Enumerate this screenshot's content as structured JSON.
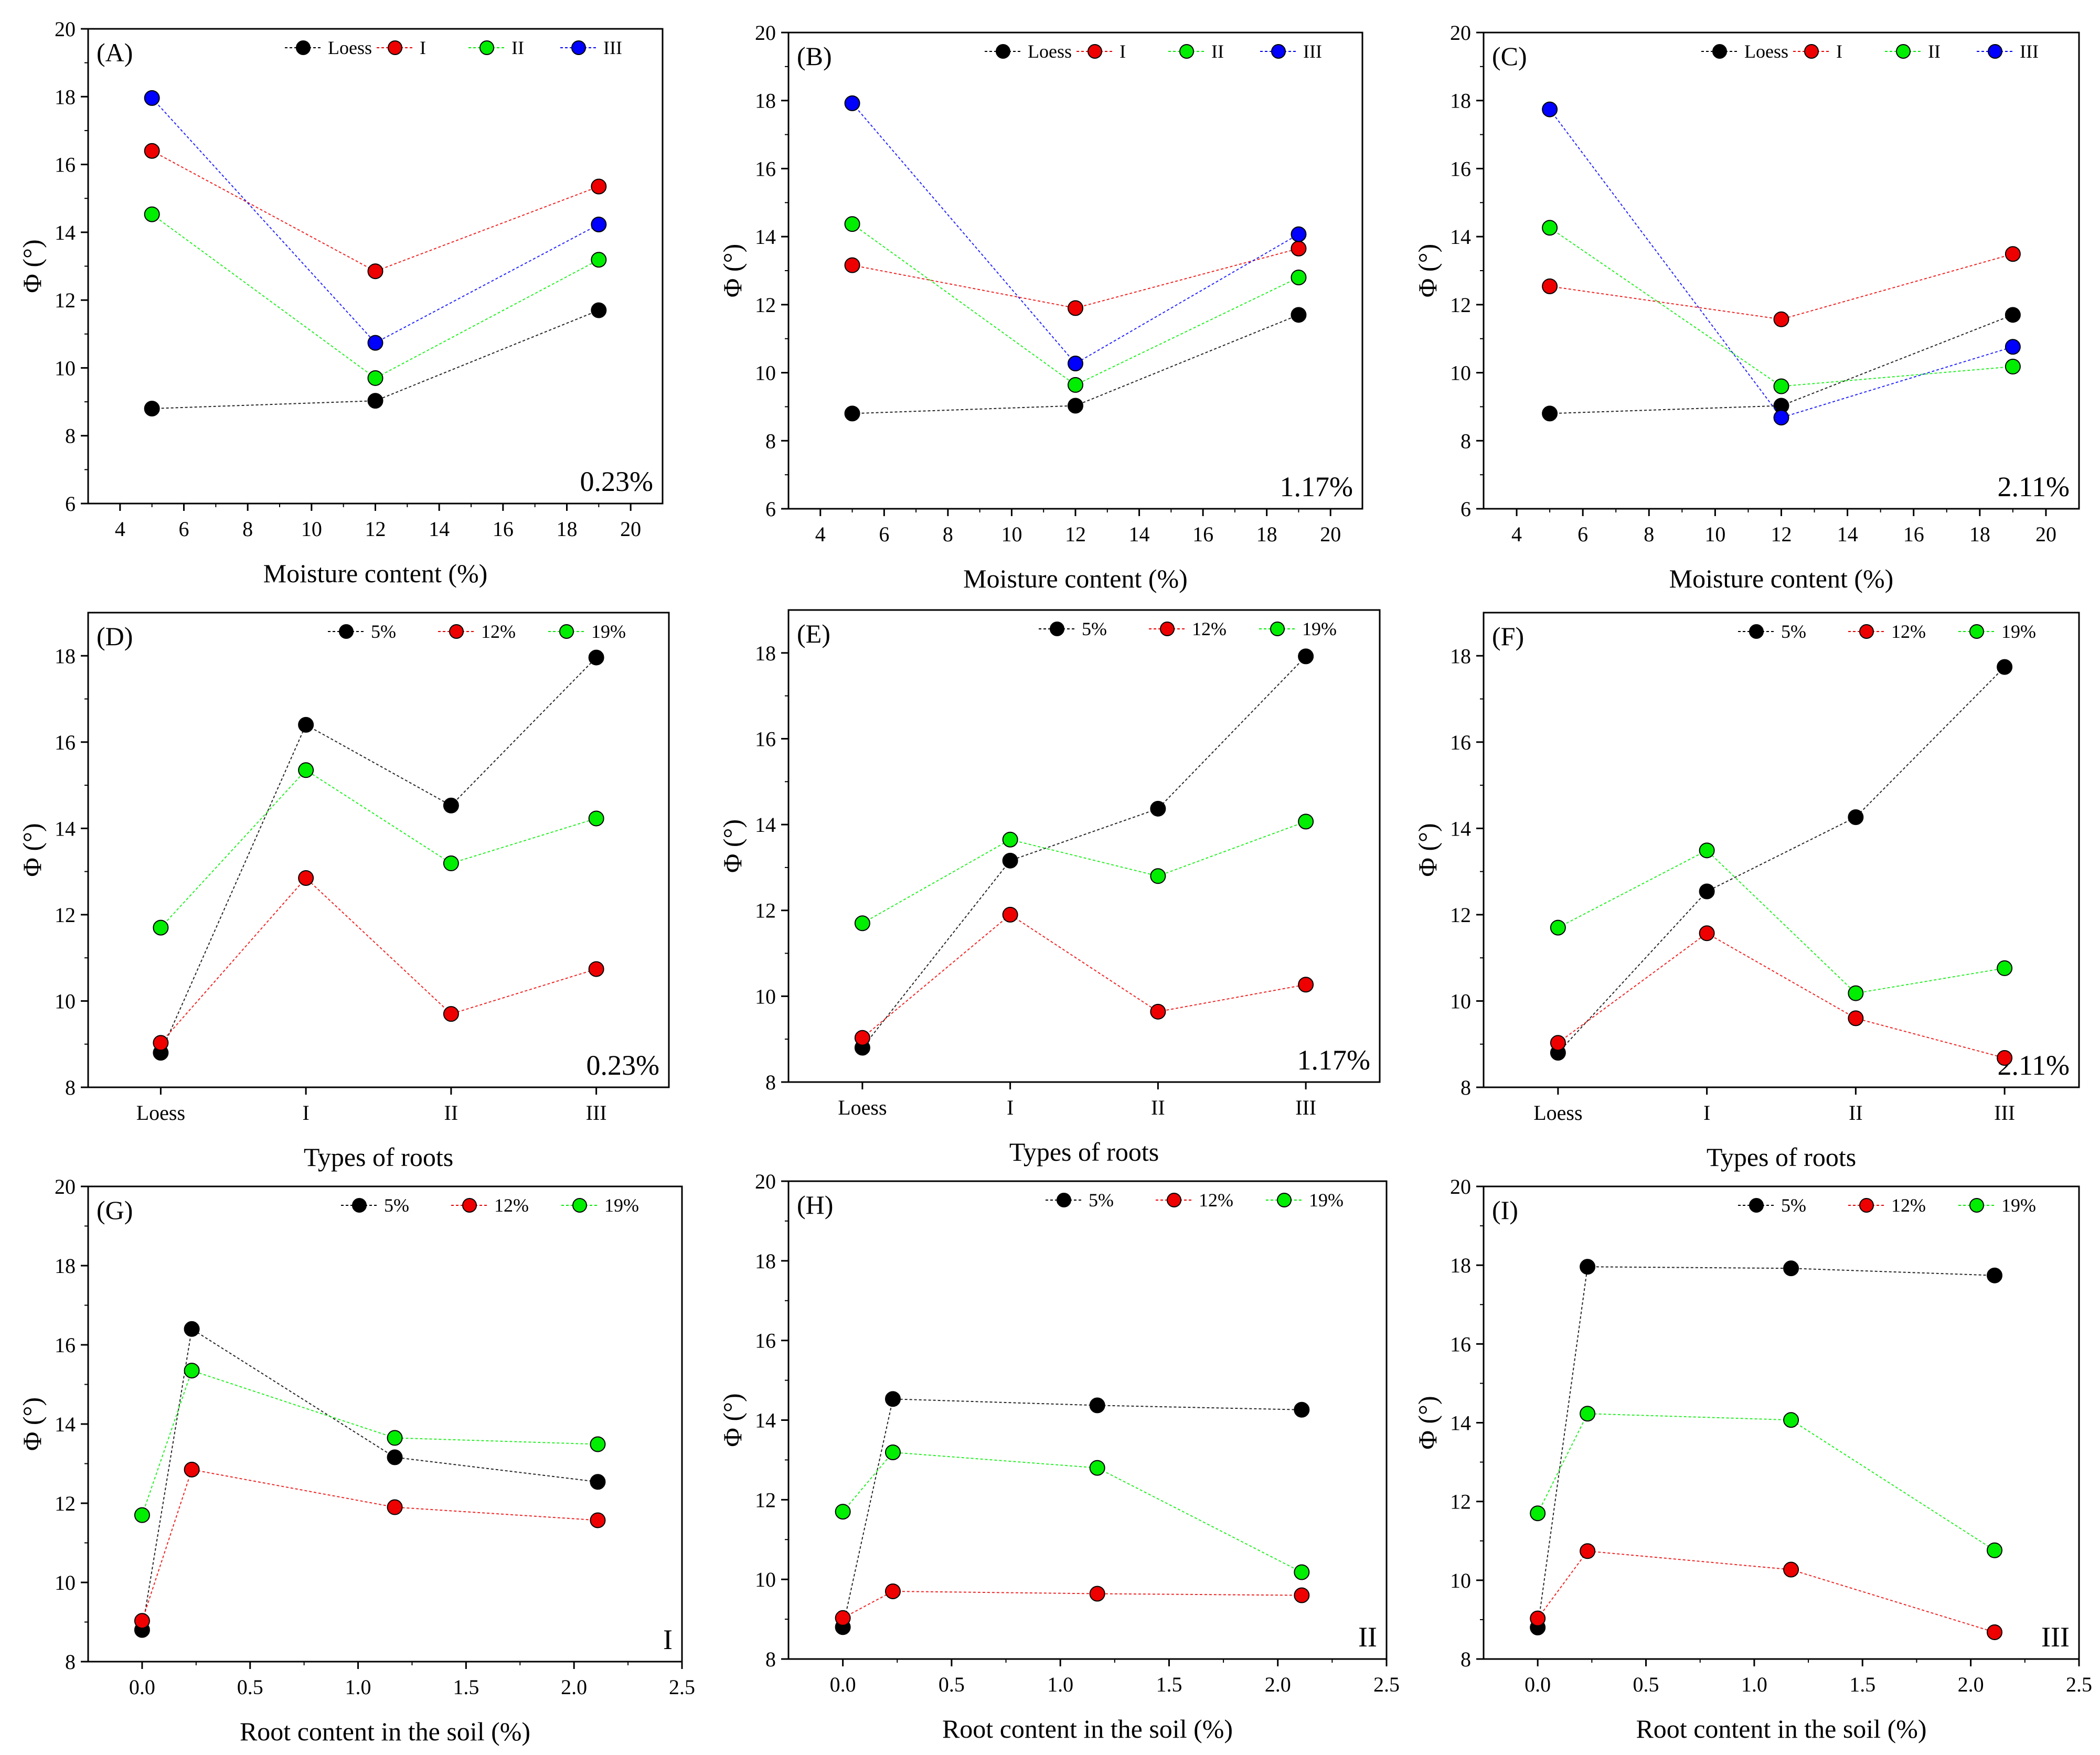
{
  "colors": {
    "black": "#000000",
    "red": "#ee0000",
    "green": "#00ee00",
    "blue": "#0000ff"
  },
  "chart_data": [
    {
      "id": "A",
      "type": "line",
      "panel_label": "(A)",
      "annotation": "0.23%",
      "xlabel": "Moisture content (%)",
      "ylabel": "Φ (°)",
      "xlim": [
        3,
        21
      ],
      "ylim": [
        6,
        20
      ],
      "xtype": "numeric",
      "xticks": [
        4,
        6,
        8,
        10,
        12,
        14,
        16,
        18,
        20
      ],
      "yticks": [
        6,
        8,
        10,
        12,
        14,
        16,
        18,
        20
      ],
      "x": [
        5,
        12,
        19
      ],
      "series": [
        {
          "name": "Loess",
          "color": "black",
          "values": [
            8.8,
            9.03,
            11.7
          ]
        },
        {
          "name": "I",
          "color": "red",
          "values": [
            16.4,
            12.85,
            15.35
          ]
        },
        {
          "name": "II",
          "color": "green",
          "values": [
            14.53,
            9.7,
            13.19
          ]
        },
        {
          "name": "III",
          "color": "blue",
          "values": [
            17.96,
            10.74,
            14.23
          ]
        }
      ]
    },
    {
      "id": "B",
      "type": "line",
      "panel_label": "(B)",
      "annotation": "1.17%",
      "xlabel": "Moisture content (%)",
      "ylabel": "Φ (°)",
      "xlim": [
        3,
        21
      ],
      "ylim": [
        6,
        20
      ],
      "xtype": "numeric",
      "xticks": [
        4,
        6,
        8,
        10,
        12,
        14,
        16,
        18,
        20
      ],
      "yticks": [
        6,
        8,
        10,
        12,
        14,
        16,
        18,
        20
      ],
      "x": [
        5,
        12,
        19
      ],
      "series": [
        {
          "name": "Loess",
          "color": "black",
          "values": [
            8.8,
            9.03,
            11.7
          ]
        },
        {
          "name": "I",
          "color": "red",
          "values": [
            13.16,
            11.9,
            13.65
          ]
        },
        {
          "name": "II",
          "color": "green",
          "values": [
            14.37,
            9.64,
            12.8
          ]
        },
        {
          "name": "III",
          "color": "blue",
          "values": [
            17.92,
            10.27,
            14.07
          ]
        }
      ]
    },
    {
      "id": "C",
      "type": "line",
      "panel_label": "(C)",
      "annotation": "2.11%",
      "xlabel": "Moisture content (%)",
      "ylabel": "Φ (°)",
      "xlim": [
        3,
        21
      ],
      "ylim": [
        6,
        20
      ],
      "xtype": "numeric",
      "xticks": [
        4,
        6,
        8,
        10,
        12,
        14,
        16,
        18,
        20
      ],
      "yticks": [
        6,
        8,
        10,
        12,
        14,
        16,
        18,
        20
      ],
      "x": [
        5,
        12,
        19
      ],
      "series": [
        {
          "name": "Loess",
          "color": "black",
          "values": [
            8.8,
            9.03,
            11.7
          ]
        },
        {
          "name": "I",
          "color": "red",
          "values": [
            12.54,
            11.57,
            13.49
          ]
        },
        {
          "name": "II",
          "color": "green",
          "values": [
            14.26,
            9.6,
            10.18
          ]
        },
        {
          "name": "III",
          "color": "blue",
          "values": [
            17.74,
            8.68,
            10.76
          ]
        }
      ]
    },
    {
      "id": "D",
      "type": "line",
      "panel_label": "(D)",
      "annotation": "0.23%",
      "xlabel": "Types of roots",
      "ylabel": "Φ (°)",
      "xlim": [
        -0.5,
        3.5
      ],
      "ylim": [
        8,
        19
      ],
      "xtype": "category",
      "categories": [
        "Loess",
        "I",
        "II",
        "III"
      ],
      "yticks": [
        8,
        10,
        12,
        14,
        16,
        18
      ],
      "series": [
        {
          "name": "5%",
          "color": "black",
          "values": [
            8.8,
            16.4,
            14.53,
            17.96
          ]
        },
        {
          "name": "12%",
          "color": "red",
          "values": [
            9.03,
            12.85,
            9.7,
            10.74
          ]
        },
        {
          "name": "19%",
          "color": "green",
          "values": [
            11.7,
            15.35,
            13.19,
            14.23
          ]
        }
      ]
    },
    {
      "id": "E",
      "type": "line",
      "panel_label": "(E)",
      "annotation": "1.17%",
      "xlabel": "Types of roots",
      "ylabel": "Φ (°)",
      "xlim": [
        -0.5,
        3.5
      ],
      "ylim": [
        8,
        19
      ],
      "xtype": "category",
      "categories": [
        "Loess",
        "I",
        "II",
        "III"
      ],
      "yticks": [
        8,
        10,
        12,
        14,
        16,
        18
      ],
      "series": [
        {
          "name": "5%",
          "color": "black",
          "values": [
            8.8,
            13.16,
            14.37,
            17.92
          ]
        },
        {
          "name": "12%",
          "color": "red",
          "values": [
            9.03,
            11.9,
            9.64,
            10.27
          ]
        },
        {
          "name": "19%",
          "color": "green",
          "values": [
            11.7,
            13.65,
            12.8,
            14.07
          ]
        }
      ]
    },
    {
      "id": "F",
      "type": "line",
      "panel_label": "(F)",
      "annotation": "2.11%",
      "xlabel": "Types of roots",
      "ylabel": "Φ (°)",
      "xlim": [
        -0.5,
        3.5
      ],
      "ylim": [
        8,
        19
      ],
      "xtype": "category",
      "categories": [
        "Loess",
        "I",
        "II",
        "III"
      ],
      "yticks": [
        8,
        10,
        12,
        14,
        16,
        18
      ],
      "series": [
        {
          "name": "5%",
          "color": "black",
          "values": [
            8.8,
            12.54,
            14.26,
            17.74
          ]
        },
        {
          "name": "12%",
          "color": "red",
          "values": [
            9.03,
            11.57,
            9.6,
            8.68
          ]
        },
        {
          "name": "19%",
          "color": "green",
          "values": [
            11.7,
            13.49,
            10.18,
            10.76
          ]
        }
      ]
    },
    {
      "id": "G",
      "type": "line",
      "panel_label": "(G)",
      "annotation": "I",
      "xlabel": "Root content in the soil (%)",
      "ylabel": "Φ (°)",
      "xlim": [
        -0.25,
        2.5
      ],
      "ylim": [
        8,
        20
      ],
      "xtype": "numeric",
      "xticks": [
        0.0,
        0.5,
        1.0,
        1.5,
        2.0,
        2.5
      ],
      "xtick_decimals": 1,
      "yticks": [
        8,
        10,
        12,
        14,
        16,
        18,
        20
      ],
      "x": [
        0,
        0.23,
        1.17,
        2.11
      ],
      "series": [
        {
          "name": "5%",
          "color": "black",
          "values": [
            8.8,
            16.4,
            13.16,
            12.54
          ]
        },
        {
          "name": "12%",
          "color": "red",
          "values": [
            9.03,
            12.85,
            11.9,
            11.57
          ]
        },
        {
          "name": "19%",
          "color": "green",
          "values": [
            11.7,
            15.35,
            13.65,
            13.49
          ]
        }
      ]
    },
    {
      "id": "H",
      "type": "line",
      "panel_label": "(H)",
      "annotation": "II",
      "xlabel": "Root content in the soil (%)",
      "ylabel": "Φ (°)",
      "xlim": [
        -0.25,
        2.5
      ],
      "ylim": [
        8,
        20
      ],
      "xtype": "numeric",
      "xticks": [
        0.0,
        0.5,
        1.0,
        1.5,
        2.0,
        2.5
      ],
      "xtick_decimals": 1,
      "yticks": [
        8,
        10,
        12,
        14,
        16,
        18,
        20
      ],
      "x": [
        0,
        0.23,
        1.17,
        2.11
      ],
      "series": [
        {
          "name": "5%",
          "color": "black",
          "values": [
            8.8,
            14.53,
            14.37,
            14.26
          ]
        },
        {
          "name": "12%",
          "color": "red",
          "values": [
            9.03,
            9.7,
            9.64,
            9.6
          ]
        },
        {
          "name": "19%",
          "color": "green",
          "values": [
            11.7,
            13.19,
            12.8,
            10.18
          ]
        }
      ]
    },
    {
      "id": "I",
      "type": "line",
      "panel_label": "(I)",
      "annotation": "III",
      "xlabel": "Root content in the soil (%)",
      "ylabel": "Φ (°)",
      "xlim": [
        -0.25,
        2.5
      ],
      "ylim": [
        8,
        20
      ],
      "xtype": "numeric",
      "xticks": [
        0.0,
        0.5,
        1.0,
        1.5,
        2.0,
        2.5
      ],
      "xtick_decimals": 1,
      "yticks": [
        8,
        10,
        12,
        14,
        16,
        18,
        20
      ],
      "x": [
        0,
        0.23,
        1.17,
        2.11
      ],
      "series": [
        {
          "name": "5%",
          "color": "black",
          "values": [
            8.8,
            17.96,
            17.92,
            17.74
          ]
        },
        {
          "name": "12%",
          "color": "red",
          "values": [
            9.03,
            10.74,
            10.27,
            8.68
          ]
        },
        {
          "name": "19%",
          "color": "green",
          "values": [
            11.7,
            14.23,
            14.07,
            10.76
          ]
        }
      ]
    }
  ]
}
